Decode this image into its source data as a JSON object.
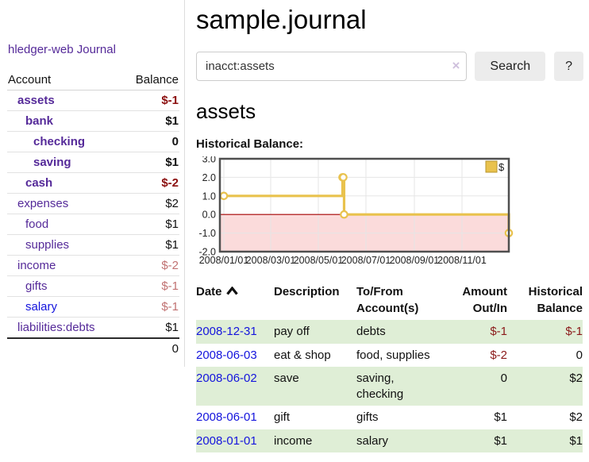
{
  "sidebar": {
    "app_title": "hledger-web",
    "nav": [
      {
        "label": "Journal"
      }
    ],
    "accounts_table": {
      "headers": [
        "Account",
        "Balance"
      ],
      "rows": [
        {
          "account": "assets",
          "indent": 1,
          "bold": true,
          "balance": "$-1",
          "balance_style": "neg-strong",
          "link_color": "purple"
        },
        {
          "account": "bank",
          "indent": 2,
          "bold": true,
          "balance": "$1",
          "balance_style": "pos-strong",
          "link_color": "purple"
        },
        {
          "account": "checking",
          "indent": 3,
          "bold": true,
          "balance": "0",
          "balance_style": "pos-strong",
          "link_color": "purple"
        },
        {
          "account": "saving",
          "indent": 3,
          "bold": true,
          "balance": "$1",
          "balance_style": "pos-strong",
          "link_color": "purple"
        },
        {
          "account": "cash",
          "indent": 2,
          "bold": true,
          "balance": "$-2",
          "balance_style": "neg-strong",
          "link_color": "purple"
        },
        {
          "account": "expenses",
          "indent": 1,
          "bold": false,
          "balance": "$2",
          "balance_style": "pos",
          "link_color": "purple"
        },
        {
          "account": "food",
          "indent": 2,
          "bold": false,
          "balance": "$1",
          "balance_style": "pos",
          "link_color": "purple"
        },
        {
          "account": "supplies",
          "indent": 2,
          "bold": false,
          "balance": "$1",
          "balance_style": "pos",
          "link_color": "purple"
        },
        {
          "account": "income",
          "indent": 1,
          "bold": false,
          "balance": "$-2",
          "balance_style": "neg",
          "link_color": "purple"
        },
        {
          "account": "gifts",
          "indent": 2,
          "bold": false,
          "balance": "$-1",
          "balance_style": "neg",
          "link_color": "purple"
        },
        {
          "account": "salary",
          "indent": 2,
          "bold": false,
          "balance": "$-1",
          "balance_style": "neg",
          "link_color": "blue"
        },
        {
          "account": "liabilities:debts",
          "indent": 1,
          "bold": false,
          "balance": "$1",
          "balance_style": "pos",
          "link_color": "purple"
        }
      ],
      "total": "0"
    }
  },
  "header": {
    "title": "sample.journal"
  },
  "search": {
    "query": "inacct:assets",
    "clear_icon": "×",
    "button_label": "Search",
    "help_label": "?"
  },
  "account_page": {
    "title": "assets",
    "chart_label": "Historical Balance:"
  },
  "chart_data": {
    "type": "line",
    "step": true,
    "title": "Historical Balance",
    "series": [
      {
        "name": "$",
        "color": "#e9c24d",
        "points": [
          [
            "2008-01-01",
            1
          ],
          [
            "2008-06-01",
            2
          ],
          [
            "2008-06-02",
            2
          ],
          [
            "2008-06-03",
            0
          ],
          [
            "2008-12-31",
            -1
          ]
        ]
      }
    ],
    "xlim": [
      "2008-01-01",
      "2008-12-31"
    ],
    "ylim": [
      -2,
      3
    ],
    "y_ticks": [
      3.0,
      2.0,
      1.0,
      0.0,
      -1.0,
      -2.0
    ],
    "x_tick_dates": [
      "2008-01-01",
      "2008-03-01",
      "2008-05-01",
      "2008-07-01",
      "2008-09-01",
      "2008-11-01"
    ],
    "x_ticks": [
      "2008/01/01",
      "2008/03/01",
      "2008/05/01",
      "2008/07/01",
      "2008/09/01",
      "2008/11/01"
    ],
    "grid": true,
    "negative_fill": "#fbdbdb",
    "zero_line_color": "#a40000",
    "legend": {
      "label": "$",
      "position": "top-right"
    }
  },
  "register_table": {
    "columns": [
      {
        "lines": [
          "Date"
        ],
        "align": "left",
        "sort_icon": true
      },
      {
        "lines": [
          "Description"
        ],
        "align": "left"
      },
      {
        "lines": [
          "To/From",
          "Account(s)"
        ],
        "align": "left"
      },
      {
        "lines": [
          "Amount",
          "Out/In"
        ],
        "align": "right"
      },
      {
        "lines": [
          "Historical",
          "Balance"
        ],
        "align": "right"
      }
    ],
    "rows": [
      {
        "date": "2008-12-31",
        "description": "pay off",
        "accounts": "debts",
        "amount": "$-1",
        "historical_balance": "$-1",
        "highlighted": true
      },
      {
        "date": "2008-06-03",
        "description": "eat & shop",
        "accounts": "food, supplies",
        "amount": "$-2",
        "historical_balance": "0",
        "highlighted": false
      },
      {
        "date": "2008-06-02",
        "description": "save",
        "accounts": "saving, checking",
        "amount": "0",
        "historical_balance": "$2",
        "highlighted": true
      },
      {
        "date": "2008-06-01",
        "description": "gift",
        "accounts": "gifts",
        "amount": "$1",
        "historical_balance": "$2",
        "highlighted": false
      },
      {
        "date": "2008-01-01",
        "description": "income",
        "accounts": "salary",
        "amount": "$1",
        "historical_balance": "$1",
        "highlighted": true
      }
    ]
  },
  "colors": {
    "accent_purple": "#552a99",
    "link_blue": "#1414dd",
    "negative_strong": "#8b0f0f",
    "negative_muted": "#c17272",
    "table_negative": "#8b1a1a",
    "row_highlight": "#dfeed6",
    "chart_line": "#e9c24d"
  }
}
